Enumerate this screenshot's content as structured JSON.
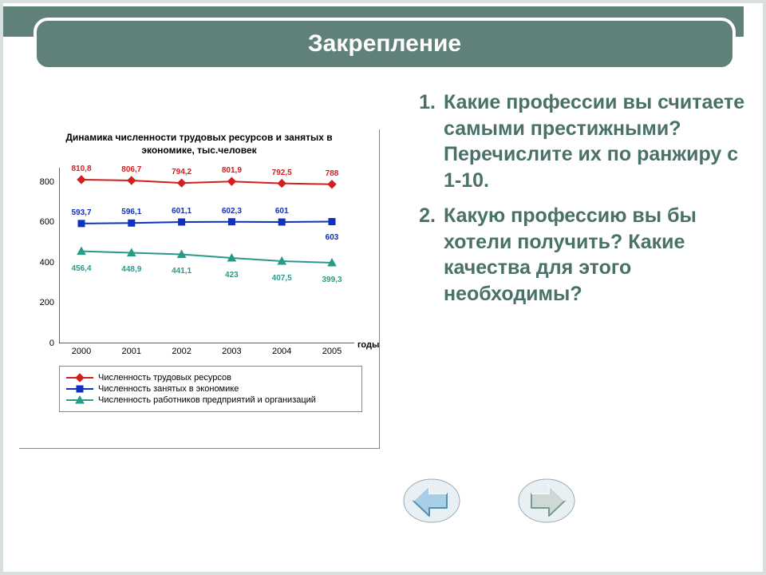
{
  "title": "Закрепление",
  "chart": {
    "type": "line",
    "title": "Динамика численности трудовых ресурсов и занятых в экономике, тыс.человек",
    "xlabel": "годы",
    "categories": [
      "2000",
      "2001",
      "2002",
      "2003",
      "2004",
      "2005"
    ],
    "yticks": [
      0,
      200,
      400,
      600,
      800
    ],
    "ylim": [
      0,
      870
    ],
    "series": [
      {
        "name": "Численность трудовых ресурсов",
        "color": "#d22020",
        "marker": "diamond",
        "values": [
          810.8,
          806.7,
          794.2,
          801.9,
          792.5,
          788
        ],
        "labels": [
          "810,8",
          "806,7",
          "794,2",
          "801,9",
          "792,5",
          "788"
        ],
        "label_dy": -8
      },
      {
        "name": "Численность занятых в экономике",
        "color": "#1030c0",
        "marker": "square",
        "values": [
          593.7,
          596.1,
          601.1,
          602.3,
          601,
          603
        ],
        "labels": [
          "593,7",
          "596,1",
          "601,1",
          "602,3",
          "601",
          "603"
        ],
        "label_dy": -8,
        "label_last_dy": 14
      },
      {
        "name": "Численность работников предприятий и организаций",
        "color": "#2a9a88",
        "marker": "triangle",
        "values": [
          456.4,
          448.9,
          441.1,
          423,
          407.5,
          399.3
        ],
        "labels": [
          "456,4",
          "448,9",
          "441,1",
          "423",
          "407,5",
          "399,3"
        ],
        "label_dy": 16
      }
    ],
    "background_color": "#ffffff",
    "axis_color": "#000000",
    "tick_fontsize": 11
  },
  "questions": [
    {
      "n": "1.",
      "text": "Какие профессии вы считаете самыми престижными? Перечислите их по ранжиру с 1-10."
    },
    {
      "n": "2.",
      "text": "Какую профессию вы бы хотели получить? Какие качества для этого необходимы?"
    }
  ],
  "nav": {
    "back_fill": "#a7cfe8",
    "back_stroke": "#5a8bb0",
    "fwd_fill": "#cfd8d4",
    "fwd_stroke": "#7a9a90"
  }
}
